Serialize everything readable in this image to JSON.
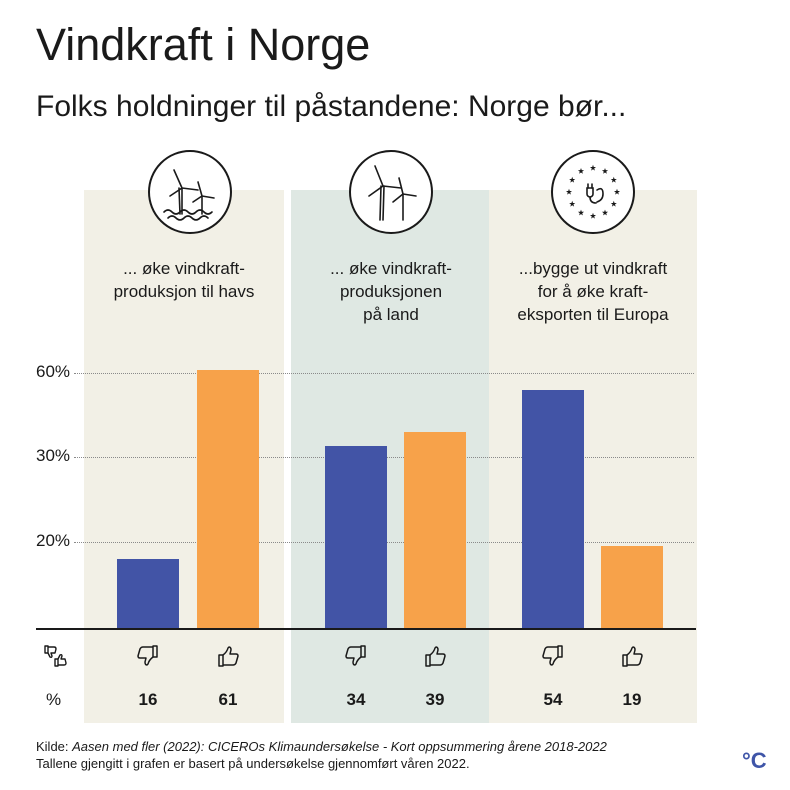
{
  "title": "Vindkraft i Norge",
  "subtitle": "Folks holdninger til påstandene: Norge bør...",
  "colors": {
    "disagree": "#4254a6",
    "agree": "#f7a24a",
    "panel_light": "#f2f0e6",
    "panel_green": "#dfe8e3",
    "accent_logo": "#3f55a8"
  },
  "statements": [
    {
      "lines": [
        "... øke vindkraft-",
        "produksjon til havs"
      ],
      "icon": "offshore-wind-icon"
    },
    {
      "lines": [
        "... øke vindkraft-",
        "produksjonen",
        "på land"
      ],
      "icon": "onshore-wind-icon"
    },
    {
      "lines": [
        "...bygge ut vindkraft",
        "for å øke kraft-",
        "eksporten til Europa"
      ],
      "icon": "eu-export-icon"
    }
  ],
  "row_labels": {
    "percent_symbol": "%",
    "thumbs_icon": "thumbs-down-up-icon"
  },
  "chart_data": {
    "type": "bar",
    "categories": [
      "... øke vindkraftproduksjon til havs",
      "... øke vindkraftproduksjonen på land",
      "...bygge ut vindkraft for å øke krafteksporten til Europa"
    ],
    "series": [
      {
        "icon": "thumbs-down-icon",
        "values": [
          16,
          34,
          54
        ]
      },
      {
        "icon": "thumbs-up-icon",
        "values": [
          61,
          39,
          19
        ]
      }
    ],
    "yticks": [
      "20%",
      "30%",
      "60%"
    ],
    "ytick_values": [
      20,
      30,
      60
    ],
    "grid": true,
    "title": "Vindkraft i Norge",
    "subtitle": "Folks holdninger til påstandene: Norge bør...",
    "xlabel": "",
    "ylabel": ""
  },
  "footer": {
    "source_prefix": "Kilde: ",
    "source_text": "Aasen med fler (2022): CICEROs Klimaundersøkelse - Kort oppsummering årene 2018-2022",
    "note": "Tallene gjengitt i grafen er basert på undersøkelse gjennomført våren 2022."
  },
  "logo": "°C"
}
